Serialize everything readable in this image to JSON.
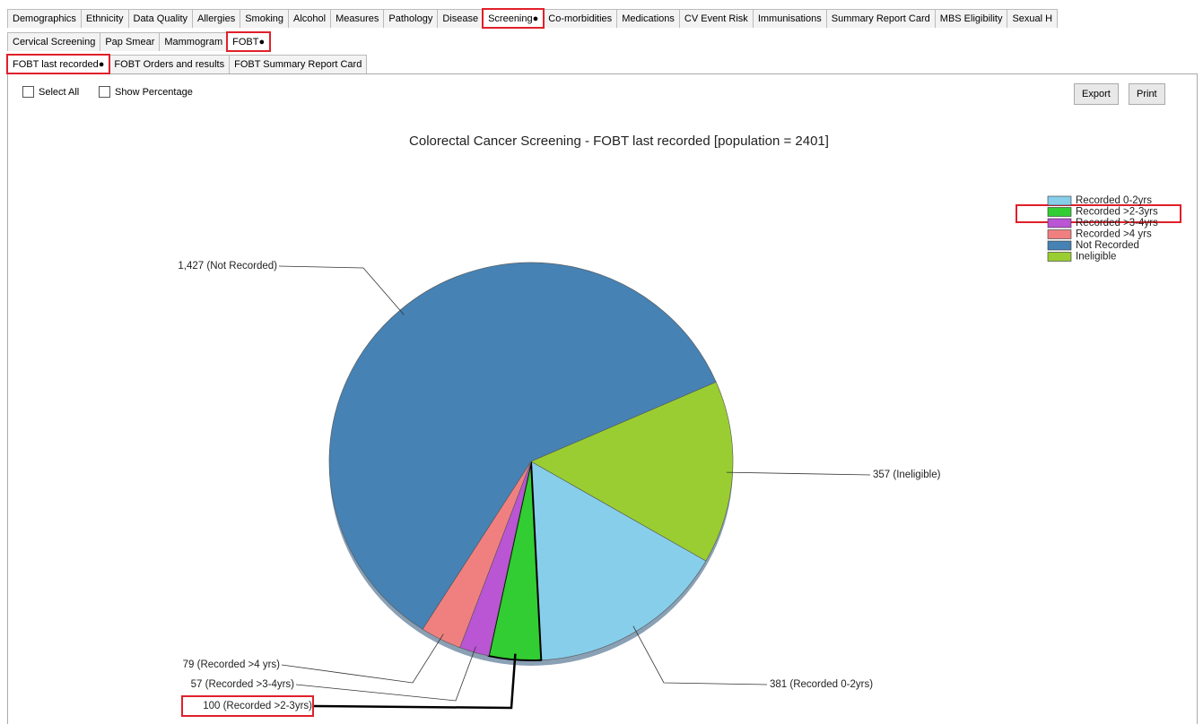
{
  "tabs": [
    "Demographics",
    "Ethnicity",
    "Data Quality",
    "Allergies",
    "Smoking",
    "Alcohol",
    "Measures",
    "Pathology",
    "Disease",
    "Screening●",
    "Co-morbidities",
    "Medications",
    "CV Event Risk",
    "Immunisations",
    "Summary Report Card",
    "MBS Eligibility",
    "Sexual H"
  ],
  "sub_tabs": [
    "Cervical Screening",
    "Pap Smear",
    "Mammogram",
    "FOBT●"
  ],
  "report_tabs": [
    "FOBT last recorded●",
    "FOBT Orders and results",
    "FOBT Summary Report Card"
  ],
  "options": [
    "Select All",
    "Show Percentage"
  ],
  "buttons": [
    "Export",
    "Print"
  ],
  "chart_data": {
    "type": "pie",
    "title": "Colorectal Cancer Screening - FOBT last recorded [population = 2401]",
    "categories": [
      "Recorded 0-2yrs",
      "Recorded >2-3yrs",
      "Recorded >3-4yrs",
      "Recorded >4 yrs",
      "Not Recorded",
      "Ineligible"
    ],
    "values": [
      381,
      100,
      57,
      79,
      1427,
      357
    ],
    "value_labels": [
      "381 (Recorded 0-2yrs)",
      "100 (Recorded >2-3yrs)",
      "57 (Recorded >3-4yrs)",
      "79 (Recorded >4 yrs)",
      "1,427 (Not Recorded)",
      "357 (Ineligible)"
    ],
    "colors": [
      "#87ceeb",
      "#32cd32",
      "#ba55d3",
      "#f08080",
      "#4682b4",
      "#9acd32"
    ],
    "legend": "top-right"
  }
}
